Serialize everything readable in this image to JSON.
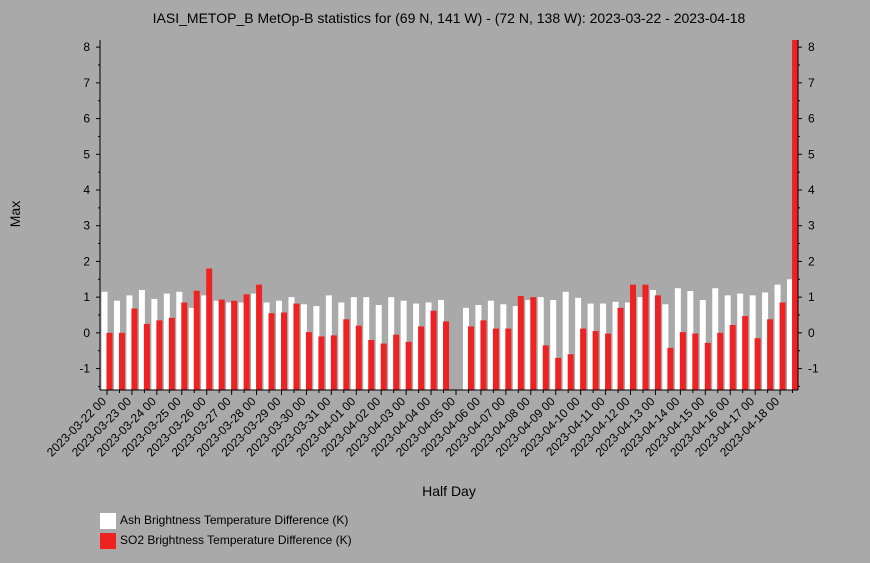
{
  "chart_data": {
    "type": "bar",
    "title": "IASI_METOP_B MetOp-B statistics for (69 N, 141 W) - (72 N, 138 W): 2023-03-22 - 2023-04-18",
    "xlabel": "Half Day",
    "ylabel": "Max",
    "ylim": [
      -1.6,
      8.2
    ],
    "yticks": [
      -1,
      0,
      1,
      2,
      3,
      4,
      5,
      6,
      7,
      8
    ],
    "grid": false,
    "legend_position": "bottom-left",
    "x_tick_labels": [
      "2023-03-22 00",
      "2023-03-23 00",
      "2023-03-24 00",
      "2023-03-25 00",
      "2023-03-26 00",
      "2023-03-27 00",
      "2023-03-28 00",
      "2023-03-29 00",
      "2023-03-30 00",
      "2023-03-31 00",
      "2023-04-01 00",
      "2023-04-02 00",
      "2023-04-03 00",
      "2023-04-04 00",
      "2023-04-05 00",
      "2023-04-06 00",
      "2023-04-07 00",
      "2023-04-08 00",
      "2023-04-09 00",
      "2023-04-10 00",
      "2023-04-11 00",
      "2023-04-12 00",
      "2023-04-13 00",
      "2023-04-14 00",
      "2023-04-15 00",
      "2023-04-16 00",
      "2023-04-17 00",
      "2023-04-18 00"
    ],
    "series": [
      {
        "name": "Ash Brightness Temperature Difference (K)",
        "color": "#ffffff",
        "values": [
          1.15,
          0.9,
          1.05,
          1.2,
          0.95,
          1.1,
          1.15,
          0.7,
          1.05,
          0.9,
          0.85,
          0.85,
          1.1,
          0.85,
          0.9,
          1.0,
          0.8,
          0.75,
          1.05,
          0.85,
          1.0,
          1.0,
          0.78,
          1.0,
          0.9,
          0.82,
          0.85,
          0.92,
          null,
          0.7,
          0.78,
          0.9,
          0.8,
          0.75,
          0.92,
          1.0,
          0.92,
          1.15,
          0.98,
          0.82,
          0.82,
          0.87,
          0.85,
          1.0,
          1.2,
          0.8,
          1.25,
          1.17,
          0.92,
          1.25,
          1.05,
          1.1,
          1.05,
          1.13,
          1.35,
          1.5
        ]
      },
      {
        "name": "SO2 Brightness Temperature Difference (K)",
        "color": "#ee2222",
        "values": [
          0.0,
          0.0,
          0.68,
          0.25,
          0.35,
          0.42,
          0.85,
          1.18,
          1.8,
          0.93,
          0.9,
          1.08,
          1.35,
          0.55,
          0.57,
          0.82,
          0.02,
          -0.1,
          -0.07,
          0.38,
          0.2,
          -0.2,
          -0.3,
          -0.05,
          -0.25,
          0.18,
          0.62,
          0.32,
          null,
          0.18,
          0.35,
          0.12,
          0.12,
          1.03,
          1.0,
          -0.35,
          -0.7,
          -0.6,
          0.12,
          0.05,
          -0.02,
          0.7,
          1.35,
          1.35,
          1.05,
          -0.42,
          0.02,
          -0.02,
          -0.28,
          0.0,
          0.22,
          0.47,
          -0.15,
          0.38,
          0.85,
          8.3
        ]
      }
    ]
  }
}
